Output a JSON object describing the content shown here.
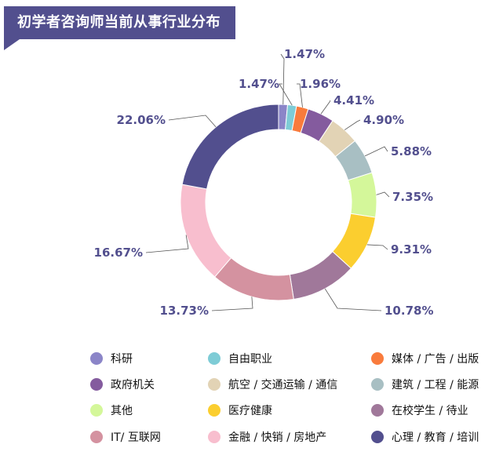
{
  "chart_data": {
    "type": "pie",
    "donut": true,
    "title": "初学者咨询师当前从事行业分布",
    "legend_position": "bottom",
    "categories": [
      "科研",
      "自由职业",
      "媒体 / 广告 / 出版",
      "政府机关",
      "航空 / 交通运输 / 通信",
      "建筑 / 工程 / 能源",
      "其他",
      "医疗健康",
      "在校学生 / 待业",
      "IT/ 互联网",
      "金融 / 快销 / 房地产",
      "心理 / 教育 / 培训"
    ],
    "values": [
      1.47,
      1.47,
      1.96,
      4.41,
      4.9,
      5.88,
      7.35,
      9.31,
      10.78,
      13.73,
      16.67,
      22.06
    ],
    "labels": [
      "1.47%",
      "1.47%",
      "1.96%",
      "4.41%",
      "4.90%",
      "5.88%",
      "7.35%",
      "9.31%",
      "10.78%",
      "13.73%",
      "16.67%",
      "22.06%"
    ],
    "colors": [
      "#8B85C8",
      "#7ECCD6",
      "#F97B3C",
      "#845B9E",
      "#E2D3B5",
      "#A8BFC3",
      "#D4F79A",
      "#FBCE2F",
      "#A0789A",
      "#D492A0",
      "#F8BECE",
      "#524F8E"
    ]
  }
}
